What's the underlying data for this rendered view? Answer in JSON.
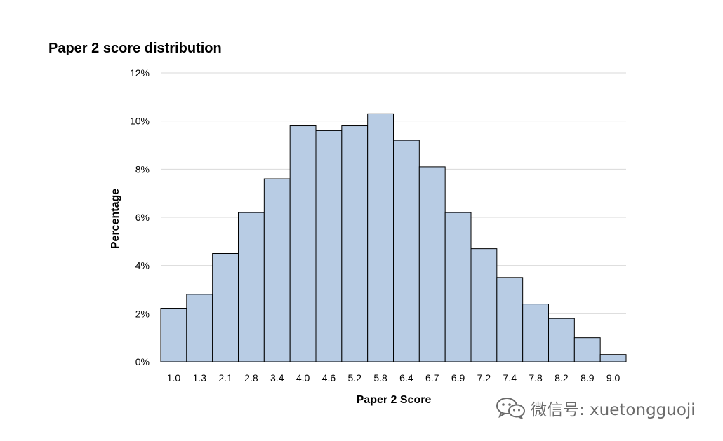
{
  "chart_data": {
    "type": "bar",
    "title": "Paper 2 score distribution",
    "xlabel": "Paper 2 Score",
    "ylabel": "Percentage",
    "ylim": [
      0,
      12
    ],
    "y_ticks": [
      "0%",
      "2%",
      "4%",
      "6%",
      "8%",
      "10%",
      "12%"
    ],
    "grid": true,
    "legend": "none",
    "bar_color": "#b8cce4",
    "categories": [
      "1.0",
      "1.3",
      "2.1",
      "2.8",
      "3.4",
      "4.0",
      "4.6",
      "5.2",
      "5.8",
      "6.4",
      "6.7",
      "6.9",
      "7.2",
      "7.4",
      "7.8",
      "8.2",
      "8.9",
      "9.0"
    ],
    "values": [
      2.2,
      2.8,
      4.5,
      6.2,
      7.6,
      9.8,
      9.6,
      9.8,
      10.3,
      9.2,
      8.1,
      6.2,
      4.7,
      3.5,
      2.4,
      1.8,
      1.0,
      0.3
    ]
  },
  "watermark": {
    "text": "微信号: xuetongguoji",
    "icon": "wechat-icon"
  }
}
